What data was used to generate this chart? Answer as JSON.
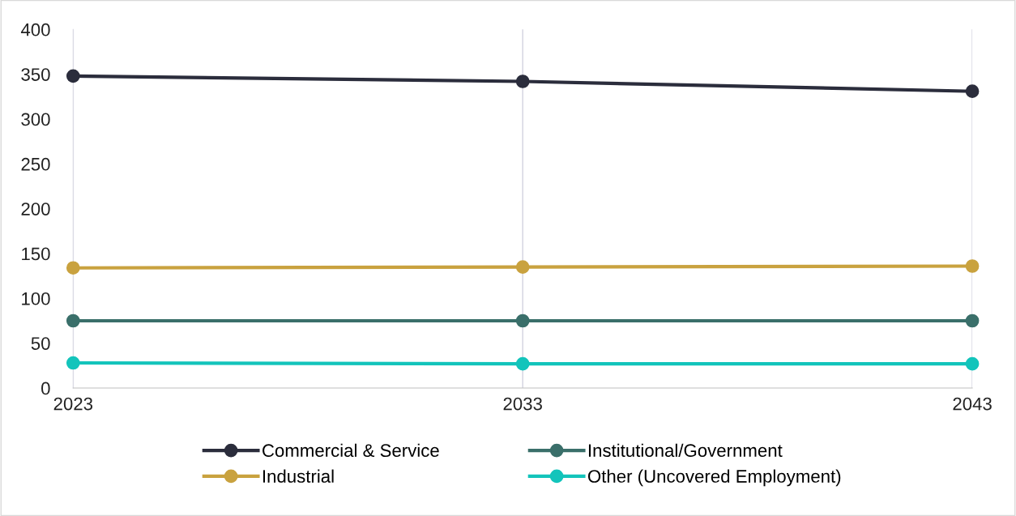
{
  "chart_data": {
    "type": "line",
    "x": [
      2023,
      2033,
      2043
    ],
    "series": [
      {
        "name": "Commercial & Service",
        "color": "#2b2d3c",
        "values": [
          348,
          342,
          331
        ]
      },
      {
        "name": "Industrial",
        "color": "#c9a23f",
        "values": [
          134,
          135,
          136
        ]
      },
      {
        "name": "Institutional/Government",
        "color": "#3a6f6a",
        "values": [
          75,
          75,
          75
        ]
      },
      {
        "name": "Other (Uncovered Employment)",
        "color": "#13c4bb",
        "values": [
          28,
          27,
          27
        ]
      }
    ],
    "xlim": [
      2023,
      2043
    ],
    "xticks": [
      2023,
      2033,
      2043
    ],
    "ylim": [
      0,
      400
    ],
    "yticks": [
      0,
      50,
      100,
      150,
      200,
      250,
      300,
      350,
      400
    ],
    "grid": "x",
    "legend": "bottom",
    "marker": "circle",
    "line_style": "solid"
  }
}
